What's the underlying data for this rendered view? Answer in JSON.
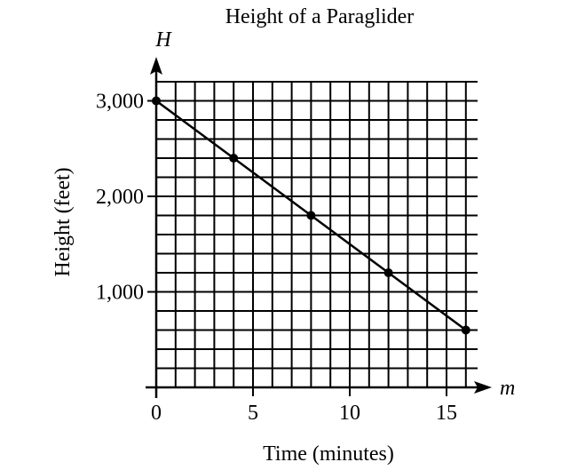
{
  "chart_data": {
    "type": "line",
    "title": "Height of a Paraglider",
    "xlabel": "Time (minutes)",
    "ylabel": "Height (feet)",
    "x_axis_var": "m",
    "y_axis_var": "H",
    "xlim": [
      0,
      16.5
    ],
    "ylim": [
      0,
      3000
    ],
    "x_grid_step": 1,
    "y_grid_step": 200,
    "grid": true,
    "x_ticks": [
      {
        "value": 0,
        "label": "0"
      },
      {
        "value": 5,
        "label": "5"
      },
      {
        "value": 10,
        "label": "10"
      },
      {
        "value": 15,
        "label": "15"
      }
    ],
    "y_ticks": [
      {
        "value": 1000,
        "label": "1,000"
      },
      {
        "value": 2000,
        "label": "2,000"
      },
      {
        "value": 3000,
        "label": "3,000"
      }
    ],
    "series": [
      {
        "x": [
          0,
          4,
          8,
          12,
          16
        ],
        "y": [
          3000,
          2400,
          1800,
          1200,
          600
        ],
        "color": "#000000",
        "markers": true
      }
    ]
  }
}
